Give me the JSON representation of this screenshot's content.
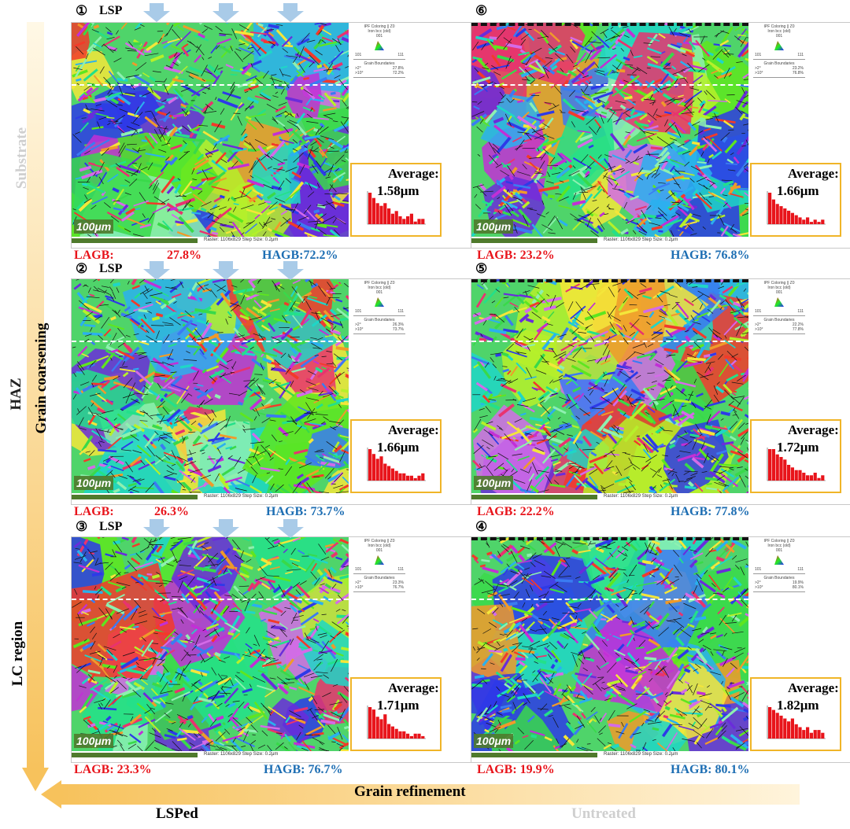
{
  "axes": {
    "vertical_arrow_label": "Grain coarsening",
    "horizontal_arrow_label": "Grain refinement",
    "row_labels": [
      "Substrate",
      "HAZ",
      "LC region"
    ],
    "column_labels": [
      "LSPed",
      "Untreated"
    ]
  },
  "legend": {
    "title_line1": "IPF Coloring || Z0",
    "title_line2": "Iron bcc (old)",
    "tri_top": "001",
    "tri_left": "101",
    "tri_right": "111",
    "gb_title": "Grain Boundaries"
  },
  "scale_bar_label": "100μm",
  "average_label": "Average:",
  "lsp_label": "LSP",
  "panels": [
    {
      "num": "①",
      "lsp": true,
      "raster": "Raster: 1106x829   Step Size: 0.2μm",
      "lagb": "LAGB:",
      "lagb_val": "27.8%",
      "hagb": "HAGB:72.2%",
      "avg": "1.58μm",
      "gb_low": "27.8%",
      "gb_high": "72.2%",
      "hist": [
        12,
        10,
        8,
        7,
        8,
        6,
        4,
        5,
        3,
        2,
        3,
        4,
        1,
        2,
        2
      ]
    },
    {
      "num": "⑥",
      "lsp": false,
      "raster": "Raster: 1106x829   Step Size: 0.2μm",
      "lagb": "LAGB: 23.2%",
      "lagb_val": "",
      "hagb": "HAGB: 76.8%",
      "avg": "1.66μm",
      "gb_low": "23.2%",
      "gb_high": "76.8%",
      "hist": [
        14,
        11,
        9,
        8,
        7,
        6,
        5,
        4,
        3,
        2,
        3,
        1,
        2,
        1,
        2
      ]
    },
    {
      "num": "②",
      "lsp": true,
      "raster": "Raster: 1106x829   Step Size: 0.2μm",
      "lagb": "LAGB:",
      "lagb_val": "26.3%",
      "hagb": "HAGB: 73.7%",
      "avg": "1.66μm",
      "gb_low": "26.3%",
      "gb_high": "73.7%",
      "hist": [
        13,
        11,
        9,
        10,
        7,
        6,
        5,
        4,
        3,
        3,
        2,
        2,
        1,
        2,
        3
      ]
    },
    {
      "num": "⑤",
      "lsp": false,
      "raster": "Raster: 1106x829   Step Size: 0.2μm",
      "lagb": "LAGB: 22.2%",
      "lagb_val": "",
      "hagb": "HAGB: 77.8%",
      "avg": "1.72μm",
      "gb_low": "22.2%",
      "gb_high": "77.8%",
      "hist": [
        12,
        12,
        10,
        9,
        8,
        6,
        5,
        4,
        4,
        3,
        2,
        2,
        3,
        1,
        2
      ]
    },
    {
      "num": "③",
      "lsp": true,
      "raster": "Raster: 1106x829   Step Size: 0.2μm",
      "lagb": "LAGB: 23.3%",
      "lagb_val": "",
      "hagb": "HAGB: 76.7%",
      "avg": "1.71μm",
      "gb_low": "23.3%",
      "gb_high": "76.7%",
      "hist": [
        13,
        12,
        9,
        8,
        10,
        6,
        5,
        4,
        3,
        3,
        2,
        1,
        2,
        2,
        1
      ]
    },
    {
      "num": "④",
      "lsp": false,
      "raster": "Raster: 1106x829   Step Size: 0.2μm",
      "lagb": "LAGB: 19.9%",
      "lagb_val": "",
      "hagb": "HAGB: 80.1%",
      "avg": "1.82μm",
      "gb_low": "19.9%",
      "gb_high": "80.1%",
      "hist": [
        11,
        10,
        9,
        8,
        7,
        6,
        7,
        5,
        4,
        3,
        4,
        2,
        3,
        3,
        2
      ]
    }
  ],
  "colors": {
    "lagb": "#e8141b",
    "hagb": "#1d6eb3",
    "inset_border": "#f0b528",
    "scalebar": "#4f7a2c",
    "arrow": "#f7c566",
    "faded_label": "#cfcfcf",
    "hist_bar": "#e8141b"
  }
}
